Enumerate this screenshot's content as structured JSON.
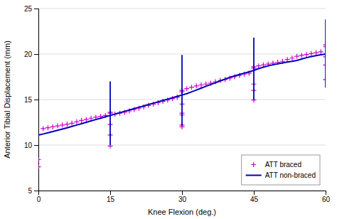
{
  "chart_data": {
    "type": "line",
    "xlabel": "Knee Flexion (deg.)",
    "ylabel": "Anterior Tibial Displacement (mm)",
    "xlim": [
      0,
      60
    ],
    "ylim": [
      5,
      25
    ],
    "xticks": [
      0,
      15,
      30,
      45,
      60
    ],
    "yticks": [
      5,
      10,
      15,
      20,
      25
    ],
    "grid": "y",
    "legend": "lower right",
    "series": [
      {
        "name": "ATT braced",
        "type": "scatter",
        "marker": "plus",
        "color": "#CC00CC",
        "x": [
          0,
          0,
          1,
          2,
          3,
          4,
          5,
          6,
          7,
          8,
          9,
          10,
          11,
          12,
          13,
          14,
          15,
          15,
          15,
          15,
          15,
          16,
          17,
          18,
          19,
          20,
          21,
          22,
          23,
          24,
          25,
          26,
          27,
          28,
          29,
          30,
          30,
          30,
          30,
          30,
          30,
          30,
          31,
          32,
          33,
          34,
          35,
          36,
          37,
          38,
          39,
          40,
          41,
          42,
          43,
          44,
          45,
          45,
          45,
          45,
          45,
          46,
          47,
          48,
          49,
          50,
          51,
          52,
          53,
          54,
          55,
          56,
          57,
          58,
          59,
          60,
          60,
          60,
          60,
          60
        ],
        "values": [
          7.6,
          8.4,
          11.8,
          11.9,
          12.0,
          12.1,
          12.2,
          12.3,
          12.4,
          12.55,
          12.7,
          12.8,
          12.95,
          13.05,
          13.15,
          13.25,
          9.9,
          11.1,
          12.25,
          13.5,
          13.6,
          13.4,
          13.5,
          13.6,
          13.75,
          13.9,
          14.05,
          14.2,
          14.35,
          14.5,
          14.65,
          14.8,
          14.95,
          15.1,
          15.25,
          12.0,
          12.2,
          13.3,
          13.5,
          14.5,
          15.85,
          16.0,
          16.2,
          16.35,
          16.5,
          16.6,
          16.7,
          16.8,
          16.95,
          17.1,
          17.2,
          17.35,
          17.5,
          17.65,
          17.8,
          17.9,
          14.95,
          16.0,
          16.7,
          18.45,
          18.6,
          18.7,
          18.8,
          18.9,
          19.0,
          19.1,
          19.2,
          19.4,
          19.55,
          19.75,
          19.85,
          19.95,
          20.05,
          20.15,
          20.25,
          17.2,
          18.8,
          19.7,
          20.8,
          21.0
        ]
      },
      {
        "name": "ATT non-braced",
        "type": "line",
        "line_style": "solid",
        "color": "#0000BB",
        "x": [
          0,
          1,
          2,
          3,
          4,
          5,
          6,
          7,
          8,
          9,
          10,
          11,
          12,
          13,
          14,
          15,
          16,
          17,
          18,
          19,
          20,
          21,
          22,
          23,
          24,
          25,
          26,
          27,
          28,
          29,
          30,
          31,
          32,
          33,
          34,
          35,
          36,
          37,
          38,
          39,
          40,
          41,
          42,
          43,
          44,
          45,
          46,
          47,
          48,
          49,
          50,
          51,
          52,
          53,
          54,
          55,
          56,
          57,
          58,
          59,
          60
        ],
        "values": [
          11.1,
          11.22,
          11.35,
          11.48,
          11.62,
          11.76,
          11.9,
          12.05,
          12.2,
          12.35,
          12.5,
          12.65,
          12.8,
          12.95,
          13.1,
          13.25,
          13.4,
          13.55,
          13.7,
          13.85,
          14.0,
          14.15,
          14.3,
          14.45,
          14.6,
          14.75,
          14.9,
          15.05,
          15.2,
          15.35,
          15.5,
          15.65,
          15.85,
          16.05,
          16.25,
          16.45,
          16.65,
          16.85,
          17.05,
          17.25,
          17.45,
          17.6,
          17.75,
          17.9,
          18.05,
          18.2,
          18.4,
          18.55,
          18.7,
          18.82,
          18.93,
          19.03,
          19.12,
          19.2,
          19.3,
          19.45,
          19.6,
          19.72,
          19.82,
          19.92,
          20.0
        ],
        "error_bars": [
          {
            "x": 15,
            "low": 10.0,
            "high": 17.0
          },
          {
            "x": 30,
            "low": 12.1,
            "high": 19.9
          },
          {
            "x": 45,
            "low": 15.0,
            "high": 21.8
          },
          {
            "x": 60,
            "low": 16.3,
            "high": 23.8
          }
        ]
      }
    ]
  }
}
